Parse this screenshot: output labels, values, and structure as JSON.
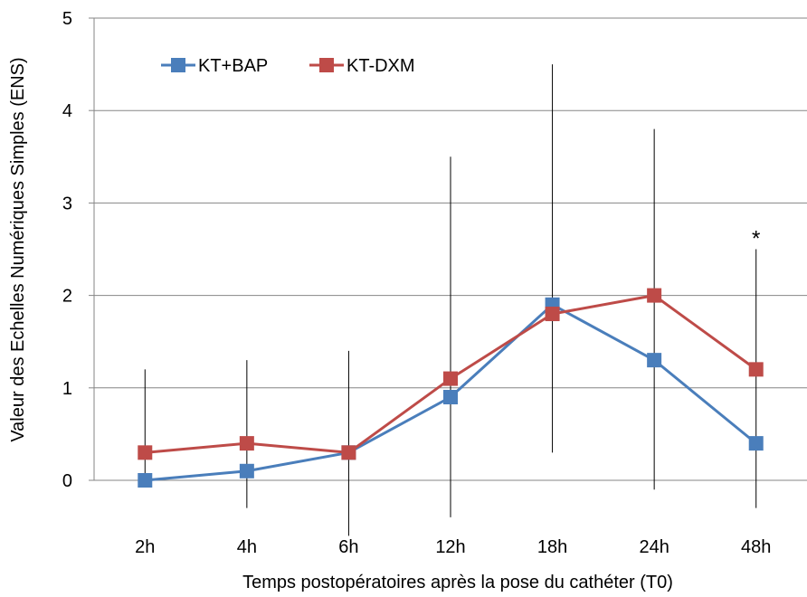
{
  "chart_data": {
    "type": "line",
    "title": "",
    "xlabel": "Temps postopératoires après la pose du cathéter (T0)",
    "ylabel": "Valeur des Echelles Numériques Simples (ENS)",
    "categories": [
      "2h",
      "4h",
      "6h",
      "12h",
      "18h",
      "24h",
      "48h"
    ],
    "ylim": [
      0,
      5
    ],
    "yticks": [
      0,
      1,
      2,
      3,
      4,
      5
    ],
    "grid": true,
    "legend_position": "top-left",
    "series": [
      {
        "name": "KT+BAP",
        "color": "#4a7ebb",
        "marker": "square",
        "values": [
          0,
          0.1,
          0.3,
          0.9,
          1.9,
          1.3,
          0.4
        ]
      },
      {
        "name": "KT-DXM",
        "color": "#be4b48",
        "marker": "square",
        "values": [
          0.3,
          0.4,
          0.3,
          1.1,
          1.8,
          2.0,
          1.2
        ]
      }
    ],
    "error_bars": {
      "lower": [
        0,
        -0.3,
        -0.6,
        -0.4,
        0.3,
        -0.1,
        -0.3
      ],
      "upper": [
        1.2,
        1.3,
        1.4,
        3.5,
        4.5,
        3.8,
        2.5
      ]
    },
    "annotations": [
      {
        "category": "48h",
        "text": "*"
      }
    ]
  }
}
